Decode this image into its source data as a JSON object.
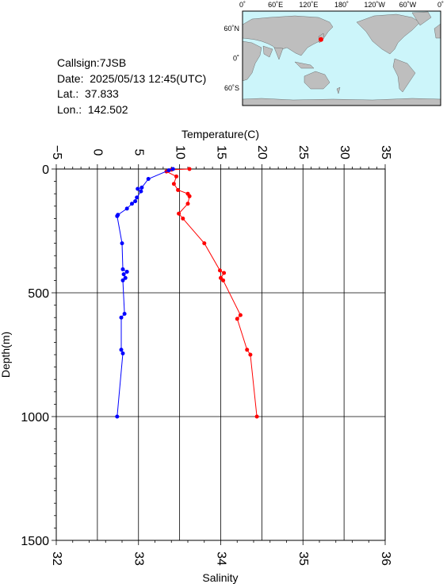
{
  "station": {
    "callsign_line": "Callsign:7JSB",
    "date_line": "Date:  2025/05/13 12:45(UTC)",
    "lat_line": "Lat.:  37.833",
    "lon_line": "Lon.:  142.502"
  },
  "map": {
    "lon_ticks": [
      "0˚",
      "60˚E",
      "120˚E",
      "180˚",
      "120˚W",
      "60˚W",
      "0˚"
    ],
    "lat_ticks": [
      "60˚N",
      "0˚",
      "60˚S"
    ],
    "ocean_color": "#ccf5fa",
    "land_color": "#bebebe",
    "marker_color": "#ff0000",
    "marker_lon": 142.502,
    "marker_lat": 37.833
  },
  "chart_data": {
    "type": "line",
    "title": "",
    "ylabel": "Depth(m)",
    "ylim": [
      0,
      1500
    ],
    "y_ticks": [
      "0",
      "500",
      "1000",
      "1500"
    ],
    "grid": true,
    "temperature_axis": {
      "label": "Temperature(C)",
      "range": [
        -5,
        35
      ],
      "ticks": [
        "−5",
        "0",
        "5",
        "10",
        "15",
        "20",
        "25",
        "30",
        "35"
      ]
    },
    "salinity_axis": {
      "label": "Salinity",
      "range": [
        32,
        36
      ],
      "ticks": [
        "32",
        "33",
        "34",
        "35",
        "36"
      ]
    },
    "series": [
      {
        "quantity": "temperature",
        "color": "#ff0000",
        "depth": [
          0,
          3,
          10,
          30,
          60,
          85,
          100,
          110,
          140,
          180,
          200,
          300,
          410,
          420,
          440,
          450,
          590,
          605,
          730,
          750,
          1000
        ],
        "values": [
          11.2,
          9.0,
          8.4,
          9.6,
          9.3,
          9.8,
          11.0,
          11.2,
          11.0,
          9.9,
          10.4,
          13.0,
          14.9,
          15.4,
          15.0,
          15.3,
          17.4,
          17.0,
          18.2,
          18.6,
          19.4
        ]
      },
      {
        "quantity": "salinity",
        "color": "#0000ff",
        "depth": [
          0,
          5,
          40,
          75,
          80,
          90,
          115,
          130,
          140,
          160,
          185,
          190,
          300,
          405,
          415,
          425,
          440,
          450,
          585,
          600,
          730,
          745,
          1000
        ],
        "values": [
          33.42,
          33.37,
          33.12,
          33.04,
          32.99,
          33.03,
          32.98,
          32.96,
          32.92,
          32.86,
          32.75,
          32.74,
          32.8,
          32.81,
          32.86,
          32.82,
          32.84,
          32.81,
          32.83,
          32.79,
          32.79,
          32.81,
          32.74
        ]
      }
    ]
  }
}
